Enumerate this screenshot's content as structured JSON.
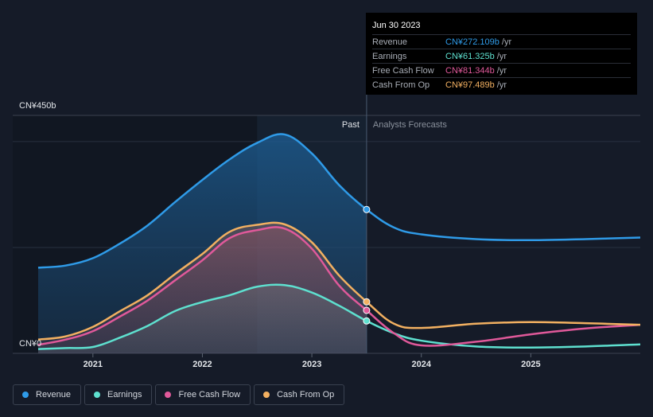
{
  "tooltip": {
    "date": "Jun 30 2023",
    "rows": [
      {
        "label": "Revenue",
        "value": "CN¥272.109b",
        "unit": "/yr",
        "color": "#2f9be8"
      },
      {
        "label": "Earnings",
        "value": "CN¥61.325b",
        "unit": "/yr",
        "color": "#5ee0cf"
      },
      {
        "label": "Free Cash Flow",
        "value": "CN¥81.344b",
        "unit": "/yr",
        "color": "#e0599a"
      },
      {
        "label": "Cash From Op",
        "value": "CN¥97.489b",
        "unit": "/yr",
        "color": "#f2b061"
      }
    ]
  },
  "legend": [
    {
      "label": "Revenue",
      "color": "#2f9be8"
    },
    {
      "label": "Earnings",
      "color": "#5ee0cf"
    },
    {
      "label": "Free Cash Flow",
      "color": "#e0599a"
    },
    {
      "label": "Cash From Op",
      "color": "#f2b061"
    }
  ],
  "chart_data": {
    "type": "area",
    "title": "",
    "ylim": [
      0,
      450
    ],
    "y_unit": "CN¥ b",
    "y_tick_labels": [
      "CN¥450b",
      "CN¥0"
    ],
    "x_tick_labels": [
      "2021",
      "2022",
      "2023",
      "2024",
      "2025"
    ],
    "xlim": [
      2020.5,
      2026.0
    ],
    "past_label": "Past",
    "forecast_label": "Analysts Forecasts",
    "divider_x": 2023.5,
    "highlight_x": 2023.5,
    "highlight_start_x": 2022.5,
    "series": [
      {
        "name": "Revenue",
        "color": "#2f9be8",
        "x": [
          2020.5,
          2020.75,
          2021.0,
          2021.25,
          2021.5,
          2021.75,
          2022.0,
          2022.25,
          2022.5,
          2022.75,
          2023.0,
          2023.25,
          2023.5,
          2023.75,
          2024.0,
          2024.5,
          2025.0,
          2025.5,
          2026.0
        ],
        "values": [
          162,
          166,
          180,
          208,
          242,
          286,
          328,
          367,
          398,
          414,
          378,
          318,
          272,
          238,
          225,
          216,
          214,
          216,
          219
        ]
      },
      {
        "name": "Earnings",
        "color": "#5ee0cf",
        "x": [
          2020.5,
          2020.75,
          2021.0,
          2021.25,
          2021.5,
          2021.75,
          2022.0,
          2022.25,
          2022.5,
          2022.75,
          2023.0,
          2023.25,
          2023.5,
          2023.75,
          2024.0,
          2024.5,
          2025.0,
          2025.5,
          2026.0
        ],
        "values": [
          8,
          10,
          12,
          30,
          52,
          80,
          97,
          110,
          126,
          129,
          115,
          90,
          61.3,
          38,
          24,
          13,
          11,
          13,
          17
        ]
      },
      {
        "name": "Free Cash Flow",
        "color": "#e0599a",
        "x": [
          2020.5,
          2020.75,
          2021.0,
          2021.25,
          2021.5,
          2021.75,
          2022.0,
          2022.25,
          2022.5,
          2022.75,
          2023.0,
          2023.25,
          2023.5,
          2023.75,
          2024.0,
          2024.5,
          2025.0,
          2025.5,
          2026.0
        ],
        "values": [
          16,
          26,
          42,
          70,
          100,
          138,
          176,
          218,
          233,
          236,
          198,
          128,
          81.3,
          38,
          15,
          22,
          36,
          47,
          54
        ]
      },
      {
        "name": "Cash From Op",
        "color": "#f2b061",
        "x": [
          2020.5,
          2020.75,
          2021.0,
          2021.25,
          2021.5,
          2021.75,
          2022.0,
          2022.25,
          2022.5,
          2022.75,
          2023.0,
          2023.25,
          2023.5,
          2023.75,
          2024.0,
          2024.5,
          2025.0,
          2025.5,
          2026.0
        ],
        "values": [
          26,
          32,
          50,
          80,
          110,
          150,
          188,
          230,
          243,
          244,
          210,
          147,
          97.5,
          56,
          48,
          56,
          59,
          57,
          54
        ]
      }
    ]
  }
}
